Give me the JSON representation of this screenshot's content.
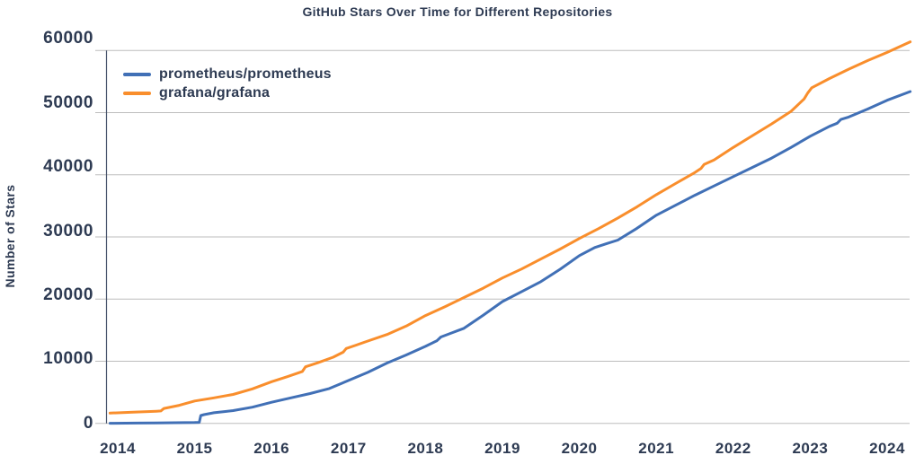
{
  "chart_data": {
    "type": "line",
    "title": "GitHub Stars Over Time for Different Repositories",
    "xlabel": "",
    "ylabel": "Number of Stars",
    "xlim": [
      2013.85,
      2024.35
    ],
    "ylim": [
      0,
      60000
    ],
    "xticks": [
      2014,
      2015,
      2016,
      2017,
      2018,
      2019,
      2020,
      2021,
      2022,
      2023,
      2024
    ],
    "yticks": [
      0,
      10000,
      20000,
      30000,
      40000,
      50000,
      60000
    ],
    "grid": "horizontal",
    "legend_position": "upper-left",
    "colors": {
      "text": "#2d3a52",
      "grid": "#bdbdbd",
      "spine": "#47536b",
      "background": "#ffffff",
      "prometheus": "#4170b6",
      "grafana": "#f98e2c"
    },
    "series": [
      {
        "name": "prometheus/prometheus",
        "color": "#4170b6",
        "points": [
          [
            2013.9,
            10
          ],
          [
            2014.25,
            40
          ],
          [
            2014.5,
            70
          ],
          [
            2014.75,
            100
          ],
          [
            2015.0,
            130
          ],
          [
            2015.06,
            160
          ],
          [
            2015.08,
            1250
          ],
          [
            2015.12,
            1400
          ],
          [
            2015.25,
            1700
          ],
          [
            2015.4,
            1900
          ],
          [
            2015.5,
            2050
          ],
          [
            2015.75,
            2600
          ],
          [
            2016.0,
            3400
          ],
          [
            2016.25,
            4100
          ],
          [
            2016.5,
            4800
          ],
          [
            2016.75,
            5600
          ],
          [
            2017.0,
            6900
          ],
          [
            2017.25,
            8200
          ],
          [
            2017.5,
            9700
          ],
          [
            2017.75,
            11000
          ],
          [
            2018.0,
            12400
          ],
          [
            2018.15,
            13300
          ],
          [
            2018.2,
            13900
          ],
          [
            2018.35,
            14600
          ],
          [
            2018.5,
            15300
          ],
          [
            2018.75,
            17400
          ],
          [
            2019.0,
            19600
          ],
          [
            2019.25,
            21200
          ],
          [
            2019.5,
            22800
          ],
          [
            2019.75,
            24800
          ],
          [
            2020.0,
            27000
          ],
          [
            2020.2,
            28300
          ],
          [
            2020.35,
            28900
          ],
          [
            2020.5,
            29500
          ],
          [
            2020.75,
            31400
          ],
          [
            2021.0,
            33500
          ],
          [
            2021.25,
            35100
          ],
          [
            2021.5,
            36700
          ],
          [
            2021.75,
            38200
          ],
          [
            2022.0,
            39700
          ],
          [
            2022.25,
            41200
          ],
          [
            2022.5,
            42700
          ],
          [
            2022.75,
            44400
          ],
          [
            2023.0,
            46200
          ],
          [
            2023.25,
            47800
          ],
          [
            2023.35,
            48300
          ],
          [
            2023.4,
            48900
          ],
          [
            2023.5,
            49300
          ],
          [
            2023.75,
            50600
          ],
          [
            2024.0,
            52000
          ],
          [
            2024.3,
            53400
          ]
        ]
      },
      {
        "name": "grafana/grafana",
        "color": "#f98e2c",
        "points": [
          [
            2013.9,
            1650
          ],
          [
            2014.2,
            1800
          ],
          [
            2014.5,
            1950
          ],
          [
            2014.56,
            2000
          ],
          [
            2014.6,
            2400
          ],
          [
            2014.8,
            2900
          ],
          [
            2015.0,
            3600
          ],
          [
            2015.25,
            4100
          ],
          [
            2015.5,
            4650
          ],
          [
            2015.75,
            5550
          ],
          [
            2016.0,
            6700
          ],
          [
            2016.2,
            7500
          ],
          [
            2016.4,
            8350
          ],
          [
            2016.44,
            9100
          ],
          [
            2016.6,
            9750
          ],
          [
            2016.8,
            10650
          ],
          [
            2016.93,
            11450
          ],
          [
            2016.97,
            12050
          ],
          [
            2017.1,
            12600
          ],
          [
            2017.25,
            13250
          ],
          [
            2017.5,
            14300
          ],
          [
            2017.75,
            15650
          ],
          [
            2018.0,
            17350
          ],
          [
            2018.25,
            18750
          ],
          [
            2018.5,
            20250
          ],
          [
            2018.75,
            21750
          ],
          [
            2019.0,
            23400
          ],
          [
            2019.25,
            24850
          ],
          [
            2019.5,
            26450
          ],
          [
            2019.75,
            28050
          ],
          [
            2020.0,
            29750
          ],
          [
            2020.25,
            31350
          ],
          [
            2020.5,
            33050
          ],
          [
            2020.75,
            34850
          ],
          [
            2021.0,
            36800
          ],
          [
            2021.25,
            38600
          ],
          [
            2021.5,
            40350
          ],
          [
            2021.58,
            41000
          ],
          [
            2021.62,
            41650
          ],
          [
            2021.75,
            42400
          ],
          [
            2022.0,
            44400
          ],
          [
            2022.25,
            46300
          ],
          [
            2022.5,
            48200
          ],
          [
            2022.75,
            50200
          ],
          [
            2022.92,
            52200
          ],
          [
            2022.97,
            53200
          ],
          [
            2023.02,
            54000
          ],
          [
            2023.25,
            55500
          ],
          [
            2023.5,
            57000
          ],
          [
            2023.75,
            58400
          ],
          [
            2024.0,
            59700
          ],
          [
            2024.3,
            61400
          ]
        ]
      }
    ]
  }
}
